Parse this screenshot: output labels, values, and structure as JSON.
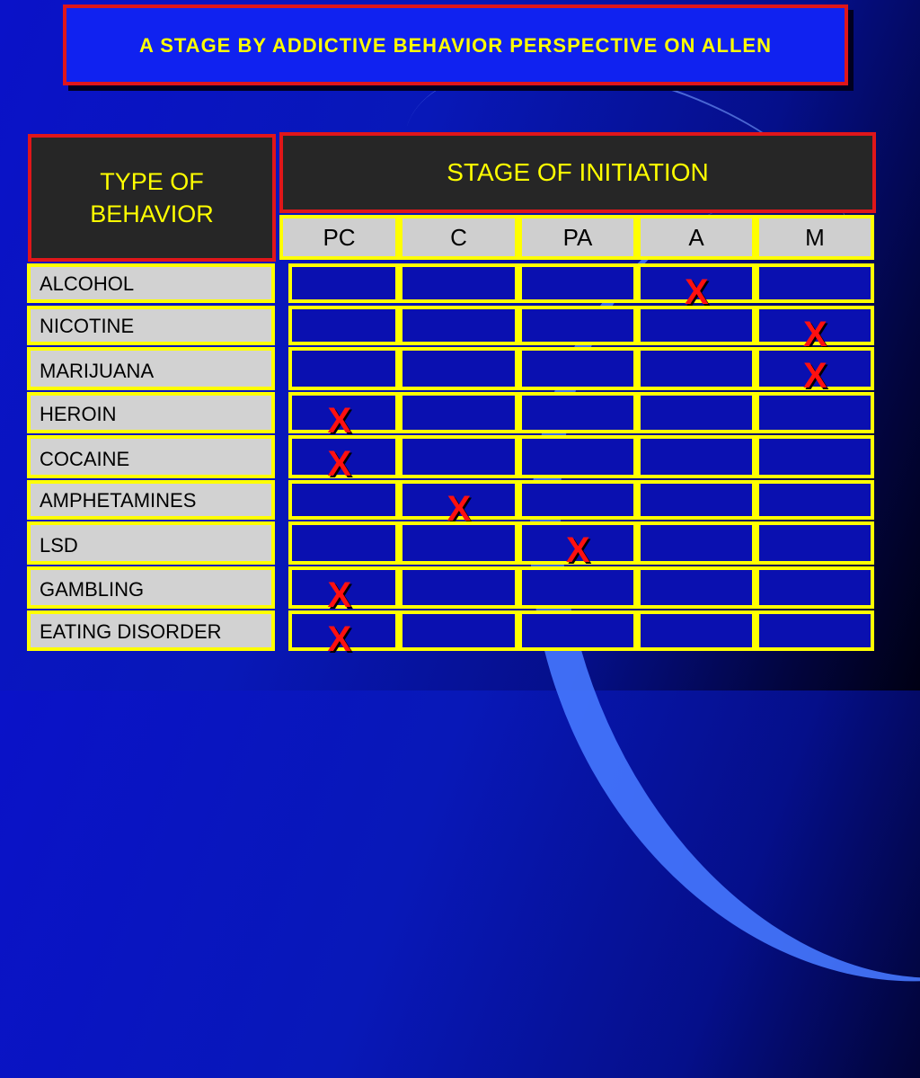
{
  "title": "A  STAGE  BY  ADDICTIVE  BEHAVIOR  PERSPECTIVE  ON ALLEN",
  "table": {
    "corner_label": "TYPE OF BEHAVIOR",
    "stage_header": "STAGE OF INITIATION",
    "columns": [
      "PC",
      "C",
      "PA",
      "A",
      "M"
    ],
    "rows": [
      {
        "label": "ALCOHOL",
        "mark_column": "A"
      },
      {
        "label": "NICOTINE",
        "mark_column": "M"
      },
      {
        "label": "MARIJUANA",
        "mark_column": "M"
      },
      {
        "label": "HEROIN",
        "mark_column": "PC"
      },
      {
        "label": "COCAINE",
        "mark_column": "PC"
      },
      {
        "label": "AMPHETAMINES",
        "mark_column": "C"
      },
      {
        "label": "LSD",
        "mark_column": "PA"
      },
      {
        "label": "GAMBLING",
        "mark_column": "PC"
      },
      {
        "label": "EATING DISORDER",
        "mark_column": "PC"
      }
    ],
    "mark_symbol": "X"
  },
  "colors": {
    "title_text": "#ffff00",
    "border_red": "#e0161a",
    "grid_yellow": "#ffff00",
    "mark_red": "#ff1010"
  }
}
